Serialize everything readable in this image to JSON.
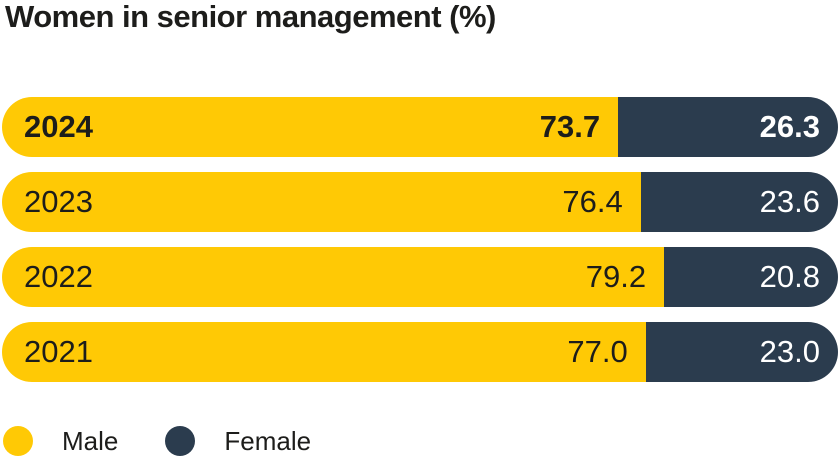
{
  "title": "Women in senior management (%)",
  "colors": {
    "male": "#ffc905",
    "female": "#2b3c4e",
    "title_text": "#1d1d1b",
    "value_text_on_dark": "#ffffff",
    "background": "#ffffff"
  },
  "chart_data": {
    "type": "bar",
    "orientation": "horizontal",
    "stacked": true,
    "title": "Women in senior management (%)",
    "categories": [
      "2024",
      "2023",
      "2022",
      "2021"
    ],
    "series": [
      {
        "name": "Male",
        "color": "#ffc905",
        "values": [
          73.7,
          76.4,
          79.2,
          77.0
        ]
      },
      {
        "name": "Female",
        "color": "#2b3c4e",
        "values": [
          26.3,
          23.6,
          20.8,
          23.0
        ]
      }
    ],
    "value_range": [
      0,
      100
    ],
    "grid": false,
    "legend_position": "bottom-left",
    "highlighted_category": "2024"
  },
  "rows": [
    {
      "year": "2024",
      "male_label": "73.7",
      "female_label": "26.3",
      "male_pct": 73.7,
      "female_pct": 26.3
    },
    {
      "year": "2023",
      "male_label": "76.4",
      "female_label": "23.6",
      "male_pct": 76.4,
      "female_pct": 23.6
    },
    {
      "year": "2022",
      "male_label": "79.2",
      "female_label": "20.8",
      "male_pct": 79.2,
      "female_pct": 20.8
    },
    {
      "year": "2021",
      "male_label": "77.0",
      "female_label": "23.0",
      "male_pct": 77.0,
      "female_pct": 23.0
    }
  ],
  "legend": {
    "items": [
      {
        "label": "Male",
        "color": "#ffc905"
      },
      {
        "label": "Female",
        "color": "#2b3c4e"
      }
    ]
  }
}
